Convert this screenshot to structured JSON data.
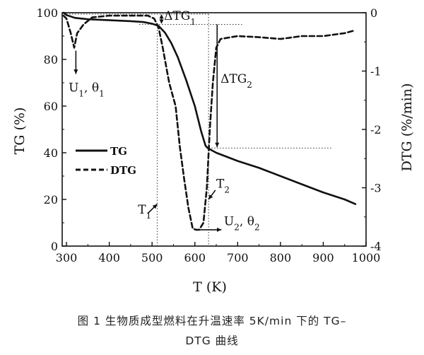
{
  "chart_data": {
    "type": "line",
    "xlabel": "T (K)",
    "ylabel_left": "TG (%)",
    "ylabel_right": "DTG  (%/min)",
    "xlim": [
      290,
      1000
    ],
    "ylim_left": [
      0,
      100
    ],
    "ylim_right": [
      -4,
      0
    ],
    "xticks": [
      "300",
      "400",
      "500",
      "600",
      "700",
      "800",
      "900",
      "1000"
    ],
    "yticks_left": [
      "0",
      "20",
      "40",
      "60",
      "80",
      "100"
    ],
    "yticks_right": [
      "0",
      "-1",
      "-2",
      "-3",
      "-4"
    ],
    "legend": {
      "placement": "middle-left",
      "entries": [
        "TG",
        "DTG"
      ]
    },
    "series": [
      {
        "name": "TG",
        "axis": "left",
        "style": "solid",
        "x": [
          293,
          300,
          320,
          350,
          400,
          450,
          480,
          500,
          515,
          530,
          545,
          560,
          580,
          600,
          615,
          625,
          630,
          650,
          700,
          750,
          800,
          850,
          900,
          950,
          975
        ],
        "y": [
          100,
          99,
          97.8,
          97.2,
          96.8,
          96.4,
          96,
          95.3,
          94.4,
          91.5,
          87,
          81,
          71,
          60,
          49,
          43,
          42,
          40,
          36.5,
          33.5,
          30,
          26.5,
          23,
          20,
          18
        ]
      },
      {
        "name": "DTG",
        "axis": "right",
        "style": "dashed",
        "x": [
          293,
          300,
          310,
          318,
          325,
          340,
          360,
          400,
          450,
          490,
          505,
          515,
          525,
          540,
          555,
          565,
          575,
          585,
          595,
          603,
          610,
          620,
          628,
          635,
          642,
          650,
          660,
          700,
          750,
          800,
          850,
          900,
          950,
          975
        ],
        "y": [
          -0.05,
          -0.1,
          -0.35,
          -0.6,
          -0.35,
          -0.2,
          -0.08,
          -0.05,
          -0.05,
          -0.05,
          -0.1,
          -0.25,
          -0.6,
          -1.2,
          -1.6,
          -2.3,
          -2.85,
          -3.35,
          -3.7,
          -3.72,
          -3.72,
          -3.6,
          -3.0,
          -2.0,
          -1.2,
          -0.6,
          -0.45,
          -0.4,
          -0.42,
          -0.45,
          -0.4,
          -0.4,
          -0.35,
          -0.3
        ]
      }
    ],
    "annotations": {
      "dtg_top": "ΔTG",
      "dtg_sub": "1",
      "dtg2_main": "ΔTG",
      "dtg2_sub": "2",
      "u1_main": "U",
      "u1_sub": "1",
      "u1_tail": ", θ",
      "u1_tail_sub": "1",
      "u2_main": "U",
      "u2_sub": "2",
      "u2_tail": ", θ",
      "u2_tail_sub": "2",
      "t1_main": "T",
      "t1_sub": "1",
      "t2_main": "T",
      "t2_sub": "2"
    }
  },
  "caption": {
    "line1": "图 1  生物质成型燃料在升温速率 5K/min 下的 TG–",
    "line2": "DTG 曲线"
  }
}
